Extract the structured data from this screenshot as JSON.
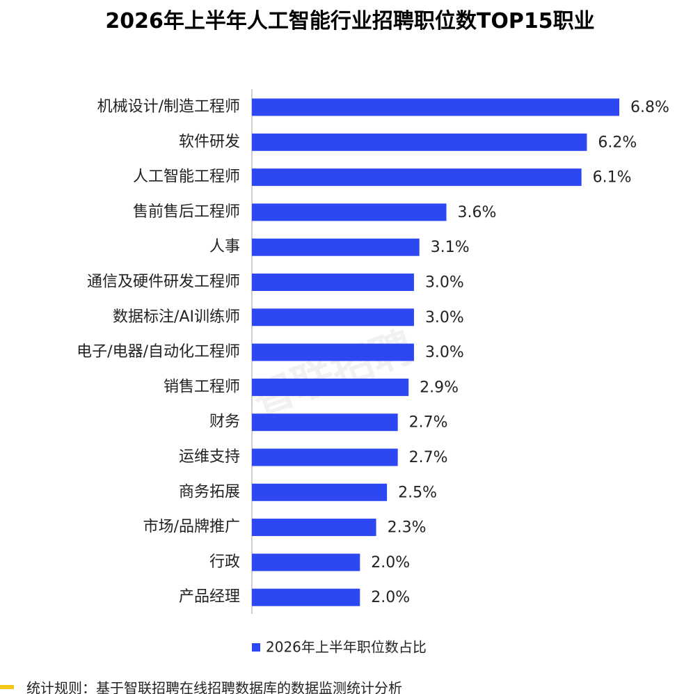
{
  "chart_data": {
    "type": "hbar",
    "title": "2026年上半年人工智能行业招聘职位数TOP15职业",
    "watermark": "智联招聘",
    "categories": [
      "机械设计/制造工程师",
      "软件研发",
      "人工智能工程师",
      "售前售后工程师",
      "人事",
      "通信及硬件研发工程师",
      "数据标注/AI训练师",
      "电子/电器/自动化工程师",
      "销售工程师",
      "财务",
      "运维支持",
      "商务拓展",
      "市场/品牌推广",
      "行政",
      "产品经理"
    ],
    "series": [
      {
        "name": "2026年上半年职位数占比",
        "color": "#2d48f2",
        "values": [
          6.8,
          6.2,
          6.1,
          3.6,
          3.1,
          3.0,
          3.0,
          3.0,
          2.9,
          2.7,
          2.7,
          2.5,
          2.3,
          2.0,
          2.0
        ],
        "value_labels": [
          "6.8%",
          "6.2%",
          "6.1%",
          "3.6%",
          "3.1%",
          "3.0%",
          "3.0%",
          "3.0%",
          "2.9%",
          "2.7%",
          "2.7%",
          "2.5%",
          "2.3%",
          "2.0%",
          "2.0%"
        ]
      }
    ],
    "xlim": [
      0,
      6.8
    ],
    "note": "统计规则：基于智联招聘在线招聘数据库的数据监测统计分析"
  }
}
